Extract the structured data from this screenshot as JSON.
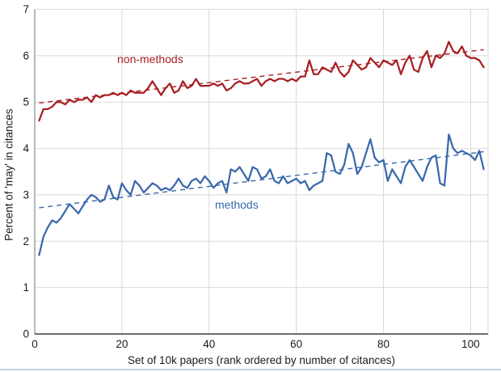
{
  "figure": {
    "bottom_border_color": "#bfd6eb",
    "background": "#ffffff",
    "grid_color": "#d9d9d9",
    "axis_left_color": "#8a8a8a",
    "axis_bottom_color": "#3f3f3f",
    "text_color": "#1c1c1c"
  },
  "chart_data": {
    "type": "line",
    "title": "",
    "xlabel": "Set of 10k papers (rank ordered by number of citances)",
    "ylabel": "Percent of 'may' in citances",
    "xlim": [
      0,
      104
    ],
    "ylim": [
      0,
      7
    ],
    "x_ticks": [
      0,
      20,
      40,
      60,
      80,
      100
    ],
    "y_ticks": [
      0,
      1,
      2,
      3,
      4,
      5,
      6,
      7
    ],
    "grid": true,
    "legend_position": "inline-labels",
    "x_start": 1,
    "x_step": 1,
    "series": [
      {
        "name": "non-methods",
        "color": "#a81f23",
        "style": "solid",
        "values": [
          4.6,
          4.85,
          4.85,
          4.9,
          5.0,
          5.0,
          4.95,
          5.05,
          5.0,
          5.05,
          5.05,
          5.1,
          5.0,
          5.15,
          5.1,
          5.15,
          5.15,
          5.2,
          5.15,
          5.2,
          5.15,
          5.25,
          5.2,
          5.2,
          5.2,
          5.3,
          5.45,
          5.3,
          5.15,
          5.3,
          5.4,
          5.2,
          5.25,
          5.45,
          5.3,
          5.35,
          5.5,
          5.35,
          5.35,
          5.35,
          5.4,
          5.35,
          5.4,
          5.25,
          5.3,
          5.4,
          5.45,
          5.4,
          5.4,
          5.45,
          5.5,
          5.35,
          5.45,
          5.5,
          5.45,
          5.5,
          5.5,
          5.45,
          5.5,
          5.45,
          5.55,
          5.55,
          5.9,
          5.6,
          5.6,
          5.75,
          5.7,
          5.65,
          5.85,
          5.65,
          5.55,
          5.65,
          5.9,
          5.8,
          5.7,
          5.75,
          5.95,
          5.85,
          5.75,
          5.9,
          5.85,
          5.8,
          5.9,
          5.6,
          5.85,
          6.0,
          5.7,
          5.65,
          5.95,
          6.1,
          5.75,
          6.0,
          5.95,
          6.05,
          6.3,
          6.1,
          6.05,
          6.2,
          6.0,
          5.95,
          5.95,
          5.9,
          5.75
        ],
        "trendline": {
          "style": "dashed",
          "start": [
            1,
            4.98
          ],
          "end": [
            103,
            6.13
          ]
        }
      },
      {
        "name": "methods",
        "color": "#3a68ac",
        "style": "solid",
        "values": [
          1.7,
          2.1,
          2.3,
          2.45,
          2.4,
          2.5,
          2.65,
          2.8,
          2.7,
          2.6,
          2.75,
          2.9,
          3.0,
          2.95,
          2.85,
          2.9,
          3.2,
          2.95,
          2.9,
          3.25,
          3.1,
          3.0,
          3.3,
          3.2,
          3.05,
          3.15,
          3.25,
          3.2,
          3.1,
          3.15,
          3.1,
          3.2,
          3.35,
          3.2,
          3.15,
          3.3,
          3.35,
          3.25,
          3.4,
          3.3,
          3.15,
          3.25,
          3.3,
          3.05,
          3.55,
          3.5,
          3.6,
          3.45,
          3.3,
          3.6,
          3.55,
          3.35,
          3.4,
          3.55,
          3.3,
          3.25,
          3.4,
          3.25,
          3.3,
          3.35,
          3.25,
          3.3,
          3.1,
          3.2,
          3.25,
          3.3,
          3.9,
          3.85,
          3.5,
          3.45,
          3.65,
          4.1,
          3.9,
          3.45,
          3.6,
          3.9,
          4.2,
          3.8,
          3.7,
          3.75,
          3.3,
          3.55,
          3.4,
          3.25,
          3.6,
          3.75,
          3.6,
          3.45,
          3.3,
          3.6,
          3.8,
          3.85,
          3.25,
          3.2,
          4.3,
          4.0,
          3.9,
          3.95,
          3.9,
          3.85,
          3.75,
          3.95,
          3.55
        ],
        "trendline": {
          "style": "dashed",
          "start": [
            1,
            2.72
          ],
          "end": [
            103,
            3.93
          ]
        }
      }
    ]
  }
}
